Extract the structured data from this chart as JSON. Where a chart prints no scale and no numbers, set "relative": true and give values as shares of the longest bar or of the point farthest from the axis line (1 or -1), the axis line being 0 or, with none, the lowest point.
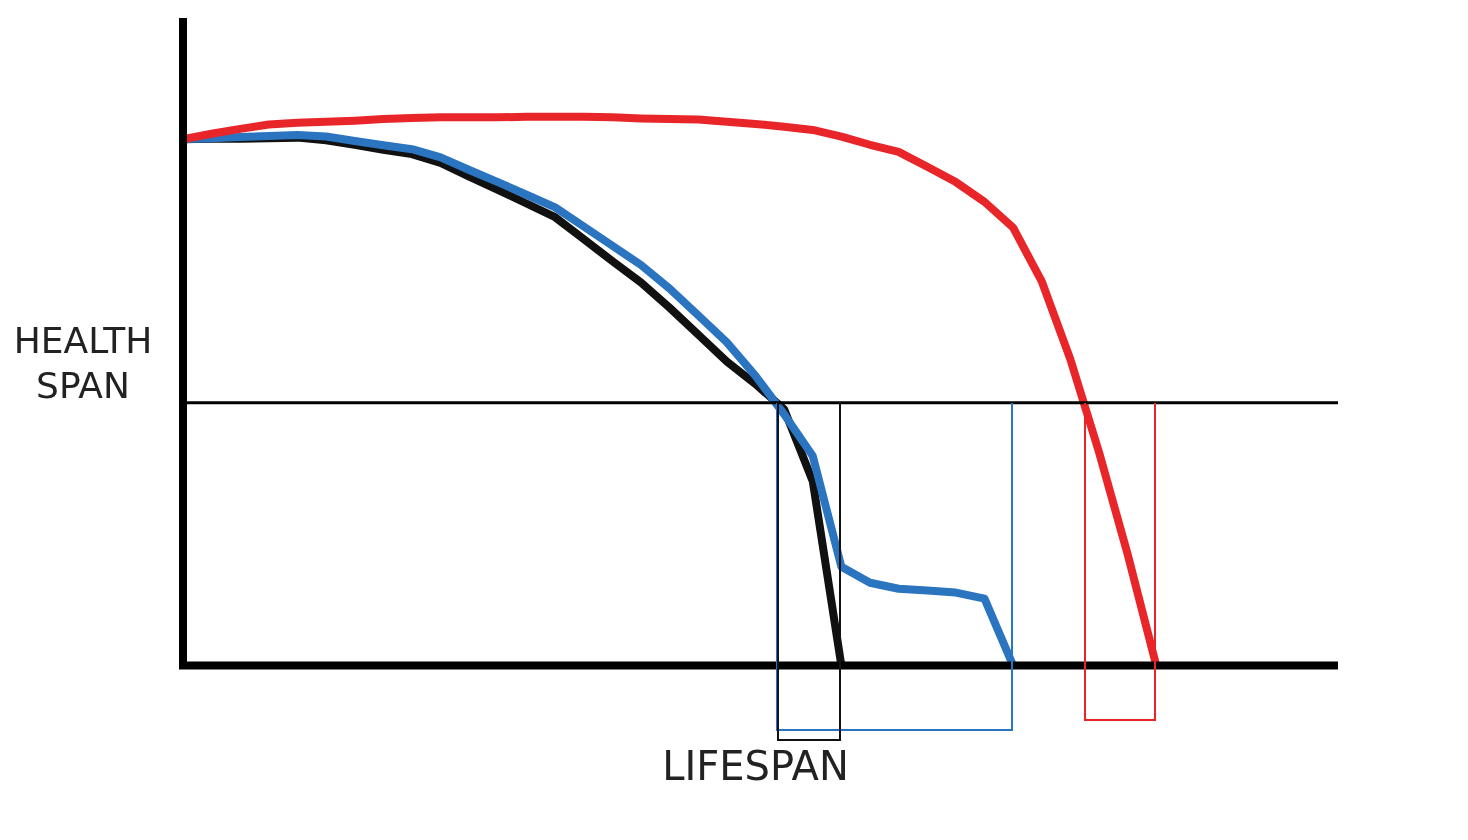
{
  "chart_data": {
    "type": "line",
    "relative": true,
    "xlabel": "LIFESPAN",
    "ylabel": "HEALTH SPAN",
    "grid": false,
    "legend": false,
    "marker": "none",
    "categories": [
      null,
      null,
      null,
      null,
      null,
      null,
      null,
      null,
      null,
      null,
      null,
      null,
      null,
      null,
      null,
      null,
      null,
      null,
      null,
      null,
      null,
      null,
      null,
      null,
      null,
      null,
      null,
      null,
      null,
      null,
      null,
      null,
      null,
      null,
      null,
      null,
      null,
      null,
      null,
      null,
      null
    ],
    "ref_lines": [
      {
        "axis": "y",
        "value": 0.479,
        "color": "#000000"
      }
    ],
    "series": [
      {
        "color": "#e8262a",
        "values": [
          0.959,
          0.969,
          0.978,
          0.986,
          0.989,
          0.991,
          0.993,
          0.996,
          0.998,
          0.999,
          0.999,
          0.999,
          1,
          1,
          1,
          0.999,
          0.997,
          0.996,
          0.995,
          0.991,
          0.987,
          0.982,
          0.976,
          0.964,
          0.949,
          0.936,
          0.909,
          0.881,
          0.845,
          0.798,
          0.7,
          0.558,
          0.389,
          0.203,
          0,
          null,
          null,
          null,
          null,
          null,
          null
        ]
      },
      {
        "color": "#2a74c0",
        "values": [
          0.959,
          0.961,
          0.963,
          0.965,
          0.967,
          0.964,
          0.956,
          0.948,
          0.941,
          0.926,
          0.903,
          0.881,
          0.858,
          0.835,
          0.8,
          0.765,
          0.73,
          0.687,
          0.638,
          0.589,
          0.528,
          0.458,
          0.382,
          0.18,
          0.151,
          0.14,
          0.137,
          0.133,
          0.122,
          0,
          null,
          null,
          null,
          null,
          null,
          null,
          null,
          null,
          null,
          null,
          null
        ]
      },
      {
        "color": "#111111",
        "values": [
          0.959,
          0.96,
          0.96,
          0.961,
          0.962,
          0.957,
          0.949,
          0.94,
          0.932,
          0.916,
          0.891,
          0.867,
          0.842,
          0.817,
          0.777,
          0.737,
          0.698,
          0.652,
          0.603,
          0.554,
          0.513,
          0.467,
          0.336,
          0,
          null,
          null,
          null,
          null,
          null,
          null,
          null,
          null,
          null,
          null,
          null,
          null,
          null,
          null,
          null,
          null,
          null
        ]
      }
    ]
  }
}
